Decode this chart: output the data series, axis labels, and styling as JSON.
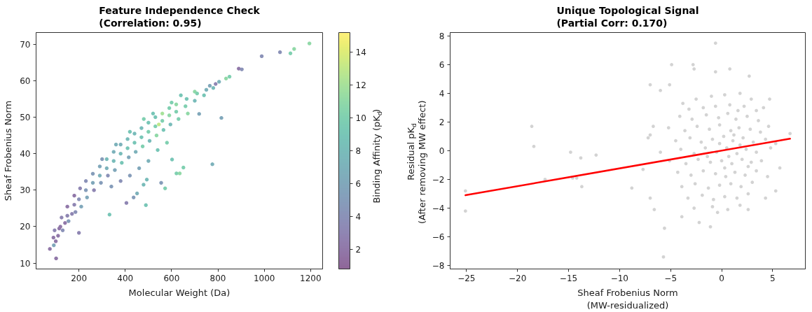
{
  "chart_data": [
    {
      "type": "scatter",
      "title": "Feature Independence Check\n(Correlation: 0.95)",
      "xlabel": "Molecular Weight (Da)",
      "ylabel": "Sheaf Frobenius Norm",
      "clabel": "Binding Affinity (pK$_{d}$)",
      "marker": "circle",
      "x": [
        90,
        95,
        100,
        110,
        115,
        120,
        125,
        130,
        140,
        150,
        150,
        155,
        170,
        180,
        180,
        185,
        200,
        205,
        210,
        230,
        230,
        235,
        260,
        260,
        265,
        290,
        290,
        295,
        300,
        320,
        320,
        325,
        340,
        350,
        350,
        355,
        360,
        380,
        380,
        385,
        380,
        410,
        410,
        415,
        420,
        420,
        440,
        440,
        445,
        460,
        470,
        470,
        475,
        480,
        500,
        500,
        505,
        500,
        520,
        530,
        530,
        535,
        540,
        545,
        560,
        560,
        565,
        580,
        590,
        590,
        595,
        600,
        620,
        620,
        630,
        640,
        660,
        665,
        670,
        700,
        700,
        710,
        740,
        750,
        765,
        780,
        790,
        805,
        835,
        850,
        890,
        903,
        989,
        1068,
        1113,
        1129,
        1195,
        815,
        719,
        776,
        651,
        621,
        635,
        602,
        572,
        489,
        405,
        332,
        200,
        101.5,
        74.5,
        91.5,
        436,
        451,
        479,
        555,
        493
      ],
      "values": [
        17,
        19,
        16,
        17.5,
        19.5,
        20,
        22.5,
        19,
        21,
        23,
        25.5,
        21.5,
        23.5,
        26,
        28.5,
        24,
        27.5,
        30.5,
        25.5,
        30,
        32.5,
        28,
        32,
        34.5,
        30,
        34,
        36.5,
        32,
        38.5,
        36,
        38.5,
        34,
        31,
        38,
        40.5,
        35.5,
        42.5,
        40,
        42.5,
        37.5,
        32.5,
        41.5,
        44,
        39,
        46,
        34,
        43,
        45.5,
        40.5,
        36,
        44.5,
        47,
        42,
        49.5,
        46,
        48.5,
        43.5,
        38,
        51,
        47.5,
        50,
        45,
        41,
        48,
        49,
        51,
        46.5,
        43,
        50.5,
        52.5,
        48,
        54,
        51.5,
        53.5,
        49.5,
        56,
        53,
        55,
        51,
        54.5,
        57,
        56.5,
        56,
        57.5,
        58.6,
        58,
        59.1,
        59.7,
        60.6,
        61.1,
        63.3,
        63.1,
        66.7,
        67.8,
        67.5,
        68.7,
        70.2,
        49.8,
        50.9,
        37.1,
        36.2,
        34.6,
        34.6,
        38.4,
        30.5,
        25.9,
        26.5,
        23.3,
        18.3,
        11.3,
        13.9,
        14.9,
        28.0,
        29.1,
        31.5,
        32.0,
        32.9
      ],
      "cvalues": [
        2,
        3,
        2,
        2,
        2,
        2,
        3,
        4,
        2,
        3,
        2,
        5,
        3,
        3,
        2,
        4,
        4,
        3,
        6,
        5,
        4,
        6,
        6,
        5,
        3,
        7,
        6,
        5,
        5,
        7,
        8,
        4,
        5,
        8,
        7,
        6,
        7,
        8,
        7,
        9,
        4,
        9,
        8,
        6,
        9,
        5,
        9,
        8,
        7,
        6,
        9,
        8,
        10,
        10,
        10,
        9,
        8,
        7,
        9,
        10,
        9,
        11,
        9,
        13,
        10,
        12,
        9,
        10,
        11,
        10,
        8,
        10,
        10,
        11,
        10,
        9,
        10,
        9,
        11,
        8,
        11,
        10,
        9,
        7,
        6,
        8,
        3,
        7,
        11,
        10,
        2,
        4,
        4,
        4,
        10,
        11,
        11,
        6,
        6,
        7,
        10,
        10,
        11,
        9,
        10,
        9,
        3,
        9,
        3,
        2,
        2,
        6,
        5,
        7,
        8,
        5,
        8
      ],
      "xlim": [
        15,
        1252
      ],
      "ylim": [
        8.4,
        73.2
      ],
      "xticks": [
        200,
        400,
        600,
        800,
        1000,
        1200
      ],
      "yticks": [
        10,
        20,
        30,
        40,
        50,
        60,
        70
      ],
      "clim": [
        0.8,
        15.2
      ],
      "cticks": [
        2,
        4,
        6,
        8,
        10,
        12,
        14
      ]
    },
    {
      "type": "scatter",
      "title": "Unique Topological Signal\n(Partial Corr: 0.170)",
      "xlabel": "Sheaf Frobenius Norm\n(MW-residualized)",
      "ylabel": "Residual pK$_{d}$\n(After removing MW effect)",
      "xlim": [
        -26.6,
        8.2
      ],
      "ylim": [
        -8.24,
        8.24
      ],
      "xticks": [
        -25,
        -20,
        -15,
        -10,
        -5,
        0,
        5
      ],
      "yticks": [
        -8,
        -6,
        -4,
        -2,
        0,
        2,
        4,
        6,
        8
      ],
      "series": [
        {
          "type": "scatter",
          "color": "#808080",
          "marker": "circle",
          "x": [
            -25.1,
            -25.1,
            -18.6,
            -18.4,
            -17.3,
            -14.8,
            -14.6,
            -14.2,
            -13.8,
            -13.7,
            -12.3,
            -0.6,
            -4.9,
            -2.8,
            -2.7,
            -0.6,
            0.8,
            -7.0,
            2.7,
            -6.0,
            -5.1,
            4.7,
            -8.8,
            -5.6,
            -5.7,
            -7.0,
            -6.6,
            -3.9,
            -2.2,
            -1.1,
            4.3,
            5.3,
            6.7,
            5.7,
            -7.2,
            -7.7,
            -6.7,
            2.6,
            -0.4,
            -7.0,
            -3.8,
            -2.5,
            -1.0,
            0.3,
            1.8,
            2.9,
            -3.2,
            -1.8,
            -0.6,
            0.8,
            2.2,
            3.4,
            4.1,
            -4.1,
            -2.9,
            -1.5,
            -0.3,
            0.6,
            1.4,
            2.5,
            3.6,
            -5.2,
            -3.6,
            -2.4,
            -1.2,
            -0.2,
            0.9,
            1.7,
            2.8,
            3.8,
            4.6,
            -4.5,
            -3.1,
            -2.0,
            -0.9,
            0.2,
            1.1,
            2.1,
            3.1,
            4.3,
            5.3,
            -6.0,
            -4.0,
            -2.7,
            -1.6,
            -0.5,
            0.5,
            1.5,
            2.4,
            3.4,
            4.8,
            -5.1,
            -3.5,
            -2.3,
            -1.1,
            0.0,
            1.0,
            2.0,
            2.9,
            3.9,
            -4.3,
            -3.0,
            -1.8,
            -0.6,
            0.4,
            1.3,
            2.3,
            3.4,
            4.5,
            -3.9,
            -2.6,
            -1.3,
            -0.2,
            0.9,
            1.9,
            3.0,
            -3.3,
            -1.9,
            -0.8,
            0.3,
            1.5,
            2.6,
            -2.7,
            -0.9,
            0.6,
            1.8,
            0.7,
            1.8,
            -0.2,
            1.2,
            0.3,
            2.6,
            -1.4,
            1.6
          ],
          "values": [
            -2.8,
            -4.2,
            1.7,
            0.3,
            -2.0,
            -0.1,
            -1.9,
            -1.9,
            -0.5,
            -2.5,
            -0.3,
            7.5,
            6.0,
            6.0,
            5.7,
            5.5,
            5.7,
            4.6,
            5.2,
            4.2,
            4.6,
            3.6,
            -2.6,
            -5.4,
            -7.4,
            -3.3,
            -4.1,
            -4.6,
            -5.0,
            -5.3,
            -3.3,
            -2.8,
            1.2,
            -1.2,
            0.9,
            -1.3,
            1.7,
            -4.1,
            -4.3,
            1.1,
            3.3,
            3.6,
            3.8,
            3.9,
            4.0,
            3.6,
            2.9,
            3.0,
            3.1,
            3.2,
            3.1,
            2.8,
            3.0,
            2.4,
            2.2,
            2.5,
            2.3,
            2.6,
            2.2,
            2.4,
            2.1,
            1.6,
            1.4,
            1.7,
            1.5,
            1.8,
            1.4,
            1.6,
            1.5,
            1.3,
            1.7,
            0.7,
            0.9,
            0.6,
            0.8,
            1.0,
            0.7,
            0.9,
            0.6,
            0.8,
            0.5,
            -0.1,
            0.1,
            -0.2,
            0.2,
            -0.1,
            0.2,
            -0.2,
            0.1,
            -0.1,
            0.2,
            -0.7,
            -0.9,
            -0.6,
            -0.8,
            -0.7,
            -0.9,
            -0.6,
            -0.8,
            -0.7,
            -1.5,
            -1.7,
            -1.4,
            -1.6,
            -1.8,
            -1.5,
            -1.7,
            -1.4,
            -1.8,
            -2.5,
            -2.3,
            -2.6,
            -2.4,
            -2.3,
            -2.5,
            -2.2,
            -3.3,
            -3.1,
            -3.4,
            -3.2,
            -3.3,
            -3.0,
            -4.0,
            -3.9,
            -4.1,
            -3.8,
            -0.4,
            0.4,
            0.5,
            1.1,
            -1.2,
            -1.1,
            -0.4,
            2.8
          ]
        },
        {
          "type": "line",
          "color": "#ff0000",
          "line_style": "solid",
          "x": [
            -25.1,
            6.7
          ],
          "values": [
            -3.1,
            0.84
          ]
        }
      ]
    }
  ]
}
